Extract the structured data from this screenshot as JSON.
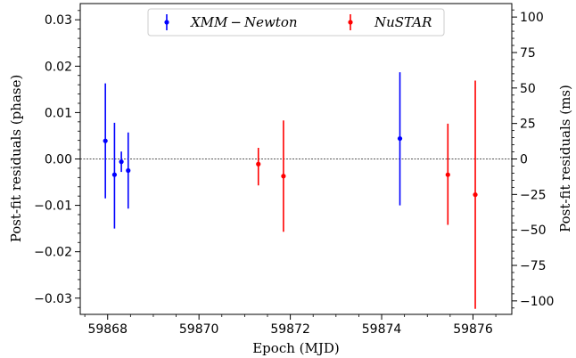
{
  "chart_data": {
    "type": "scatter",
    "xlabel": "Epoch (MJD)",
    "ylabel_left": "Post-fit residuals (phase)",
    "ylabel_right": "Post-fit residuals (ms)",
    "xlim": [
      59867.4,
      59876.85
    ],
    "ylim_left": [
      -0.0335,
      0.0335
    ],
    "ylim_right": [
      -109.5,
      109.5
    ],
    "xticks": [
      59868,
      59870,
      59872,
      59874,
      59876
    ],
    "xtick_labels": [
      "59868",
      "59870",
      "59872",
      "59874",
      "59876"
    ],
    "yticks_left": [
      -0.03,
      -0.02,
      -0.01,
      0.0,
      0.01,
      0.02,
      0.03
    ],
    "ytick_labels_left": [
      "−0.03",
      "−0.02",
      "−0.01",
      "0.00",
      "0.01",
      "0.02",
      "0.03"
    ],
    "yticks_right": [
      -100,
      -75,
      -50,
      -25,
      0,
      25,
      50,
      75,
      100
    ],
    "ytick_labels_right": [
      "−100",
      "−75",
      "−50",
      "−25",
      "0",
      "25",
      "50",
      "75",
      "100"
    ],
    "reference_line_y": 0,
    "legend_position": "top-center",
    "series": [
      {
        "name": "XMM − Newton",
        "color": "#0000ff",
        "points": [
          {
            "x": 59867.95,
            "y": 0.0039,
            "yerr_low": 0.0124,
            "yerr_high": 0.0124
          },
          {
            "x": 59868.15,
            "y": -0.0034,
            "yerr_low": 0.0116,
            "yerr_high": 0.0112
          },
          {
            "x": 59868.3,
            "y": -0.0006,
            "yerr_low": 0.0022,
            "yerr_high": 0.0022
          },
          {
            "x": 59868.45,
            "y": -0.0025,
            "yerr_low": 0.0082,
            "yerr_high": 0.0082
          },
          {
            "x": 59874.4,
            "y": 0.0044,
            "yerr_low": 0.0144,
            "yerr_high": 0.0143
          }
        ]
      },
      {
        "name": "NuSTAR",
        "color": "#ff0000",
        "points": [
          {
            "x": 59871.3,
            "y": -0.0011,
            "yerr_low": 0.0046,
            "yerr_high": 0.0035
          },
          {
            "x": 59871.85,
            "y": -0.0037,
            "yerr_low": 0.012,
            "yerr_high": 0.012
          },
          {
            "x": 59875.45,
            "y": -0.0034,
            "yerr_low": 0.0108,
            "yerr_high": 0.011
          },
          {
            "x": 59876.05,
            "y": -0.0077,
            "yerr_low": 0.0246,
            "yerr_high": 0.0246
          }
        ]
      }
    ]
  }
}
